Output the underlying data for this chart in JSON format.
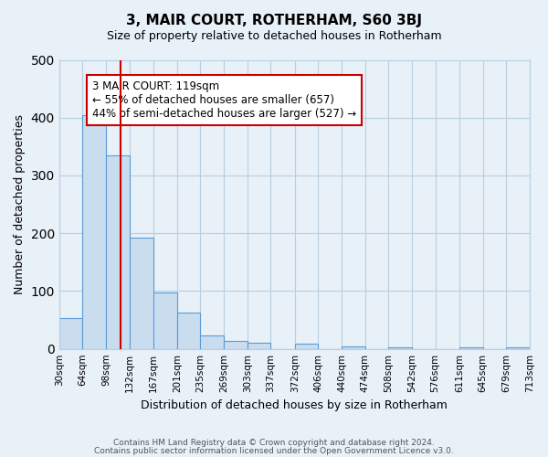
{
  "title": "3, MAIR COURT, ROTHERHAM, S60 3BJ",
  "subtitle": "Size of property relative to detached houses in Rotherham",
  "xlabel": "Distribution of detached houses by size in Rotherham",
  "ylabel": "Number of detached properties",
  "footer_line1": "Contains HM Land Registry data © Crown copyright and database right 2024.",
  "footer_line2": "Contains public sector information licensed under the Open Government Licence v3.0.",
  "bar_edges": [
    30,
    64,
    98,
    132,
    167,
    201,
    235,
    269,
    303,
    337,
    372,
    406,
    440,
    474,
    508,
    542,
    576,
    611,
    645,
    679,
    713
  ],
  "bar_heights": [
    53,
    405,
    335,
    193,
    97,
    63,
    24,
    14,
    11,
    0,
    9,
    0,
    4,
    0,
    2,
    0,
    0,
    3,
    0,
    2
  ],
  "bar_color": "#c9ddef",
  "bar_edge_color": "#5b9bd5",
  "grid_color": "#b8cfe0",
  "background_color": "#e8f0f8",
  "red_line_x": 119,
  "red_line_color": "#cc0000",
  "annotation_title": "3 MAIR COURT: 119sqm",
  "annotation_line1": "← 55% of detached houses are smaller (657)",
  "annotation_line2": "44% of semi-detached houses are larger (527) →",
  "annotation_box_color": "#ffffff",
  "annotation_border_color": "#cc0000",
  "ylim": [
    0,
    500
  ],
  "tick_labels": [
    "30sqm",
    "64sqm",
    "98sqm",
    "132sqm",
    "167sqm",
    "201sqm",
    "235sqm",
    "269sqm",
    "303sqm",
    "337sqm",
    "372sqm",
    "406sqm",
    "440sqm",
    "474sqm",
    "508sqm",
    "542sqm",
    "576sqm",
    "611sqm",
    "645sqm",
    "679sqm",
    "713sqm"
  ]
}
